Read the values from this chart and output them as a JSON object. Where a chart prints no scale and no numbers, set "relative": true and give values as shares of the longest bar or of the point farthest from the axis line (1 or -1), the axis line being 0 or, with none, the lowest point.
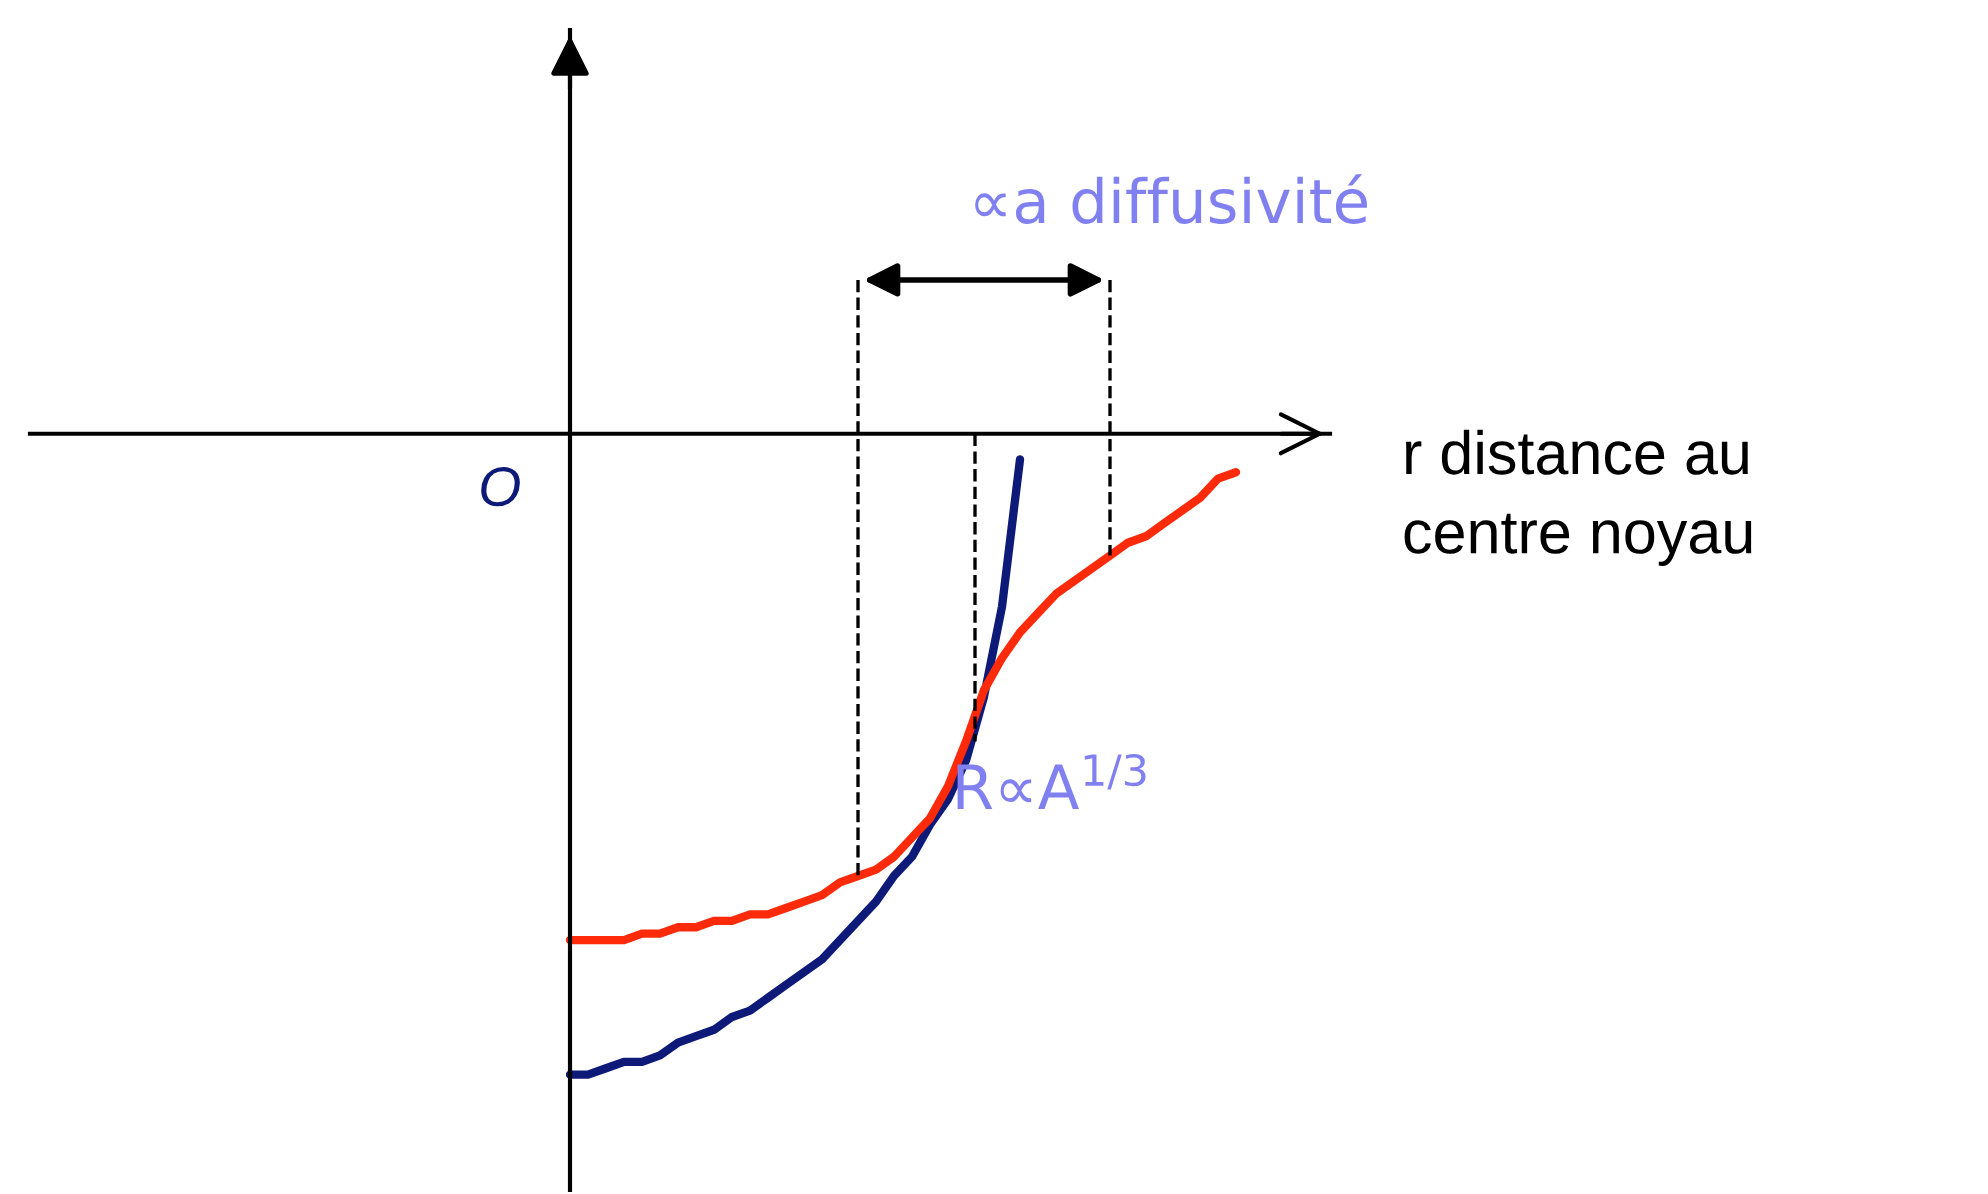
{
  "chart_data": {
    "type": "line",
    "relative": true,
    "legend": false,
    "marker": "none",
    "line_style": "solid",
    "xlabel": "r distance au\ncentre noyau",
    "categories": [
      null,
      null,
      null,
      null,
      null,
      null,
      null,
      null,
      null,
      null,
      null,
      null,
      null,
      null,
      null,
      null,
      null,
      null,
      null,
      null,
      null,
      null,
      null,
      null,
      null,
      null,
      null,
      null,
      null,
      null,
      null,
      null,
      null,
      null,
      null,
      null,
      null,
      null
    ],
    "series": [
      {
        "color": "#0d1a78",
        "values": [
          -1.0,
          -1.0,
          -0.99,
          -0.98,
          -0.98,
          -0.97,
          -0.95,
          -0.94,
          -0.93,
          -0.91,
          -0.9,
          -0.88,
          -0.86,
          -0.84,
          -0.82,
          -0.79,
          -0.76,
          -0.73,
          -0.69,
          -0.66,
          -0.61,
          -0.57,
          -0.51,
          -0.41,
          -0.27,
          -0.04,
          null,
          null,
          null,
          null,
          null,
          null,
          null,
          null,
          null,
          null,
          null,
          null
        ]
      },
      {
        "color": "#ff2a0a",
        "values": [
          -0.79,
          -0.79,
          -0.79,
          -0.79,
          -0.78,
          -0.78,
          -0.77,
          -0.77,
          -0.76,
          -0.76,
          -0.75,
          -0.75,
          -0.74,
          -0.73,
          -0.72,
          -0.7,
          -0.69,
          -0.68,
          -0.66,
          -0.63,
          -0.6,
          -0.55,
          -0.48,
          -0.4,
          -0.35,
          -0.31,
          -0.28,
          -0.25,
          -0.23,
          -0.21,
          -0.19,
          -0.17,
          -0.16,
          -0.14,
          -0.12,
          -0.1,
          -0.07,
          -0.06
        ]
      }
    ],
    "annotations": [
      "∝a diffusivité",
      "R∝A$^{1/3}$",
      "O"
    ]
  }
}
